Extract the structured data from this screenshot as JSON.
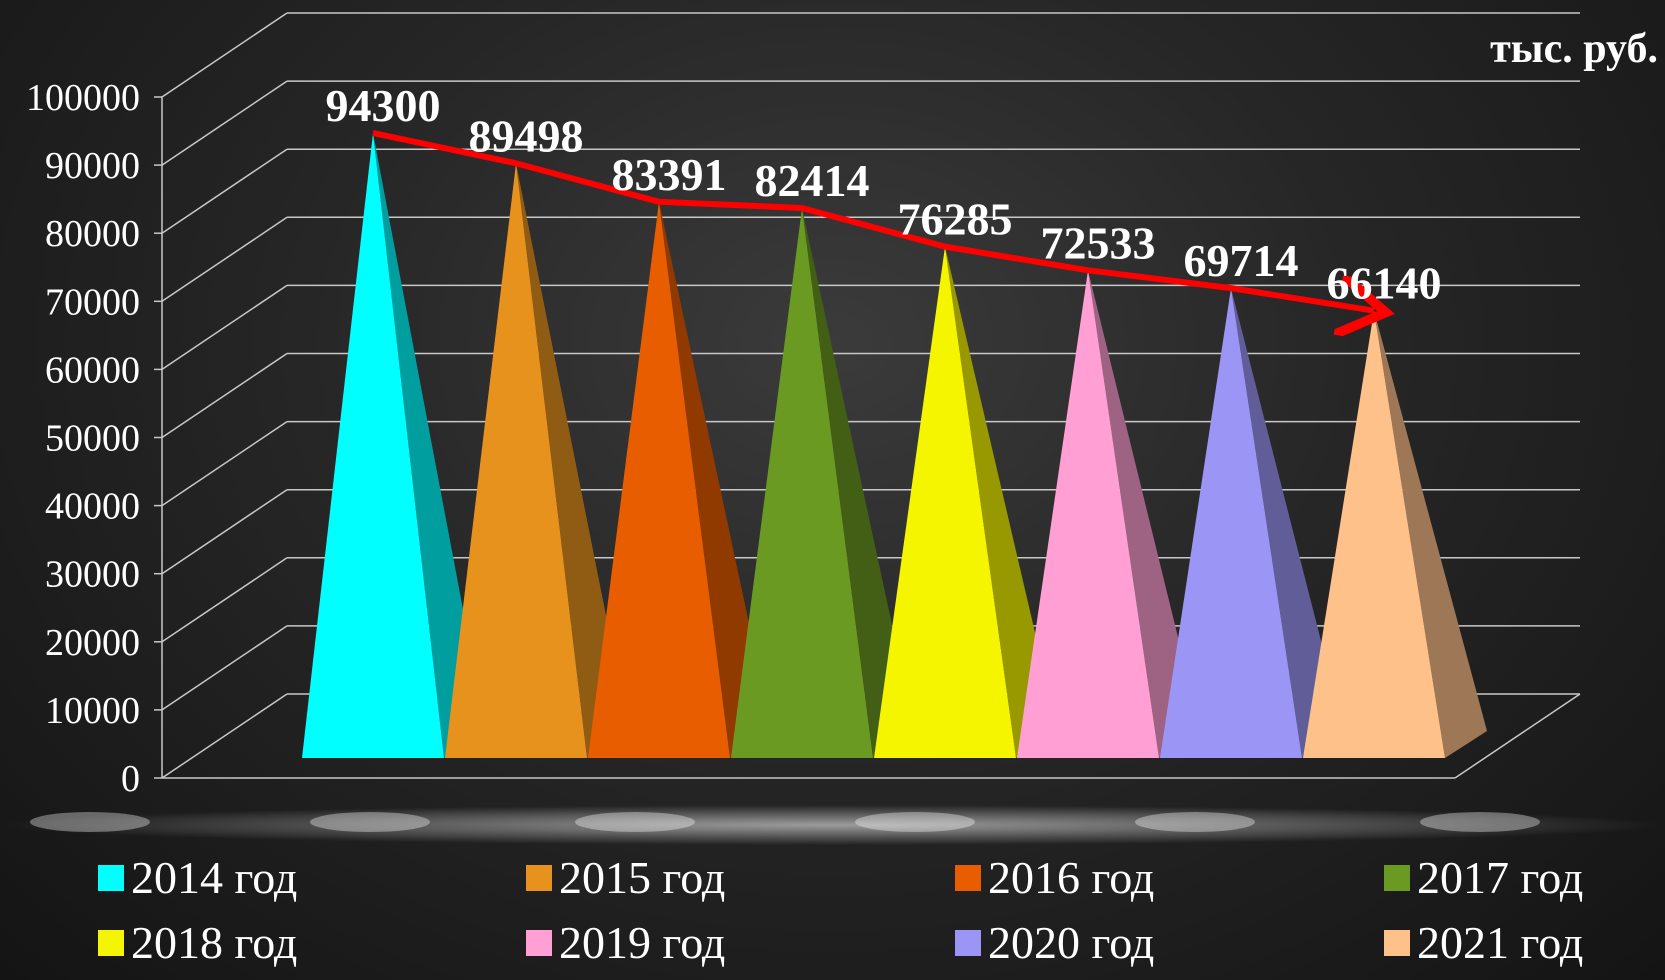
{
  "chart_data": {
    "type": "bar",
    "shape": "3d-pyramid",
    "unit_label": "тыс. руб.",
    "categories": [
      "2014 год",
      "2015 год",
      "2016 год",
      "2017 год",
      "2018 год",
      "2019 год",
      "2020 год",
      "2021 год"
    ],
    "values": [
      94300,
      89498,
      83391,
      82414,
      76285,
      72533,
      69714,
      66140
    ],
    "data_labels": [
      "94300",
      "89498",
      "83391",
      "82414",
      "76285",
      "72533",
      "69714",
      "66140"
    ],
    "colors": [
      "#00ffff",
      "#e8921e",
      "#e85d00",
      "#6a9a22",
      "#f5f500",
      "#ff9fd4",
      "#9b96f5",
      "#ffc18a"
    ],
    "ylim": [
      0,
      100000
    ],
    "yticks": [
      "0",
      "10000",
      "20000",
      "30000",
      "40000",
      "50000",
      "60000",
      "70000",
      "80000",
      "90000",
      "100000"
    ],
    "grid": true,
    "trend_arrow": true,
    "trend_color": "#ff0000",
    "legend_position": "bottom"
  }
}
